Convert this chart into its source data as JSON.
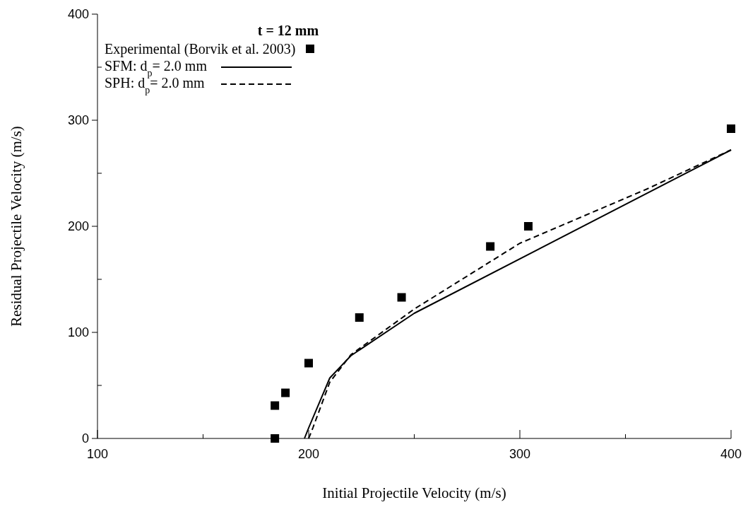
{
  "chart_data": {
    "type": "line",
    "xlabel": "Initial Projectile Velocity (m/s)",
    "ylabel": "Residual Projectile Velocity (m/s)",
    "legend_title": "t = 12 mm",
    "legend": "top left",
    "xlim": [
      100,
      400
    ],
    "xticks": [
      100,
      {
        "value": 150,
        "label": null
      },
      200,
      {
        "value": 250,
        "label": null
      },
      300,
      {
        "value": 350,
        "label": null
      },
      400
    ],
    "ylim": [
      0,
      400
    ],
    "yticks": [
      0,
      {
        "value": 50,
        "label": null
      },
      100,
      {
        "value": 150,
        "label": null
      },
      200,
      {
        "value": 250,
        "label": null
      },
      300,
      {
        "value": 350,
        "label": null
      },
      400
    ],
    "series": [
      {
        "name": "Experimental (Borvik et al. 2003)",
        "type": "scatter",
        "marker": "square",
        "color": "#000000",
        "x": [
          184,
          184,
          189,
          200,
          224,
          244,
          286,
          304,
          400
        ],
        "values": [
          0,
          31,
          43,
          71,
          114,
          133,
          181,
          200,
          292
        ]
      },
      {
        "name": "SFM: d$_{p}$= 2.0 mm",
        "type": "line",
        "line_style": "solid",
        "color": "#000000",
        "x": [
          198,
          200,
          210,
          220,
          250,
          400
        ],
        "values": [
          0,
          10,
          57,
          78,
          118,
          272
        ]
      },
      {
        "name": "SPH: d$_{p}$= 2.0 mm",
        "type": "line",
        "line_style": "dashed",
        "color": "#000000",
        "x": [
          200,
          202,
          210,
          220,
          250,
          300,
          360,
          400
        ],
        "values": [
          0,
          10,
          53,
          79,
          122,
          184,
          235,
          272
        ]
      }
    ]
  }
}
